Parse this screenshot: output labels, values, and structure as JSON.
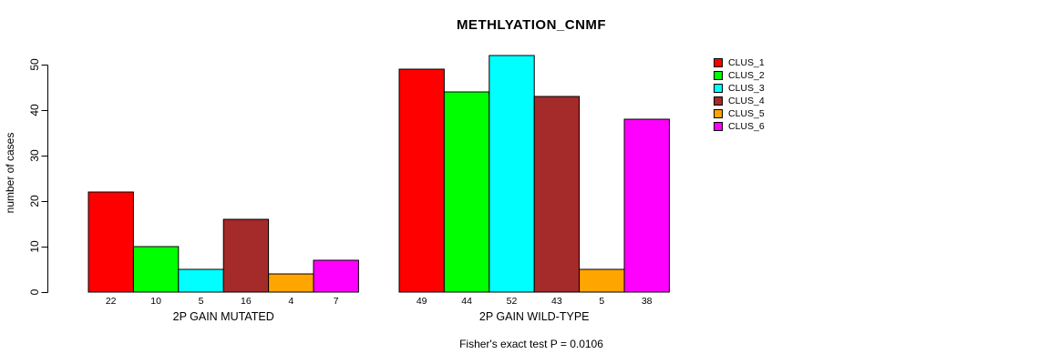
{
  "chart_data": {
    "type": "bar",
    "title": "METHLYATION_CNMF",
    "ylabel": "number of cases",
    "xlabel": "",
    "caption": "Fisher's exact test P = 0.0106",
    "categories": [
      "2P GAIN MUTATED",
      "2P GAIN WILD-TYPE"
    ],
    "series": [
      {
        "name": "CLUS_1",
        "color": "#ff0000",
        "values": [
          22,
          49
        ]
      },
      {
        "name": "CLUS_2",
        "color": "#00ff00",
        "values": [
          10,
          44
        ]
      },
      {
        "name": "CLUS_3",
        "color": "#00ffff",
        "values": [
          5,
          52
        ]
      },
      {
        "name": "CLUS_4",
        "color": "#a52a2a",
        "values": [
          16,
          43
        ]
      },
      {
        "name": "CLUS_5",
        "color": "#ffa500",
        "values": [
          4,
          5
        ]
      },
      {
        "name": "CLUS_6",
        "color": "#ff00ff",
        "values": [
          7,
          38
        ]
      }
    ],
    "bar_value_labels": {
      "2P GAIN MUTATED": [
        22,
        10,
        5,
        16,
        4,
        7
      ],
      "2P GAIN WILD-TYPE": [
        49,
        44,
        52,
        43,
        5,
        38
      ]
    },
    "yticks": [
      0,
      10,
      20,
      30,
      40,
      50
    ],
    "ylim": [
      0,
      52
    ],
    "grid": false,
    "legend_position": "top-right",
    "legend_entries": [
      "CLUS_1",
      "CLUS_2",
      "CLUS_3",
      "CLUS_4",
      "CLUS_5",
      "CLUS_6"
    ],
    "axis_color": "#000000",
    "bar_border_color": "#000000",
    "background_color": "#ffffff"
  }
}
